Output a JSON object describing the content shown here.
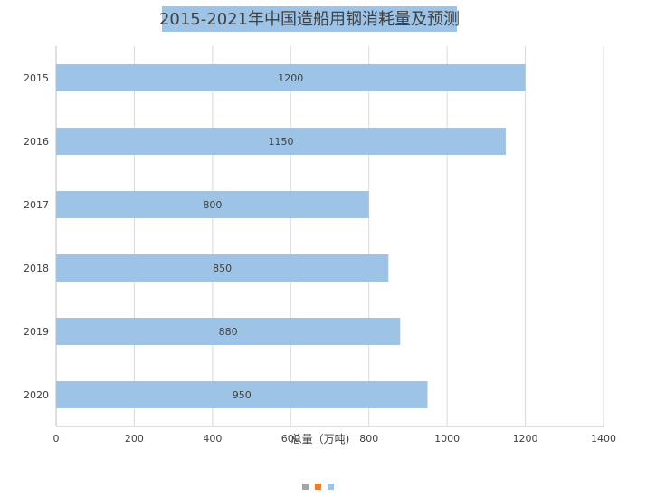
{
  "chart_data": {
    "type": "bar",
    "orientation": "horizontal",
    "title": "2015-2021年中国造船用钢消耗量及预测",
    "xlabel": "总量（万吨)",
    "ylabel": "",
    "categories": [
      "2015",
      "2016",
      "2017",
      "2018",
      "2019",
      "2020"
    ],
    "series": [
      {
        "values": [
          1200,
          1150,
          800,
          850,
          880,
          950
        ]
      }
    ],
    "xlim": [
      0,
      1400
    ],
    "x_ticks": [
      0,
      200,
      400,
      600,
      800,
      1000,
      1200,
      1400
    ],
    "x_tick_labels": [
      "0",
      "200",
      "400",
      "600",
      "800",
      "1000",
      "1200",
      "1400"
    ],
    "data_labels": [
      "1200",
      "1150",
      "800",
      "850",
      "880",
      "950"
    ],
    "grid": "vertical",
    "legend": {
      "position": "bottom",
      "swatches": [
        "#a5a5a5",
        "#ed7d31",
        "#9dc3e6"
      ]
    },
    "colors": {
      "bar": "#9dc3e6",
      "title_background": "#9dc3e6",
      "grid": "#d9d9d9",
      "axis": "#bfbfbf",
      "text": "#404040"
    }
  }
}
